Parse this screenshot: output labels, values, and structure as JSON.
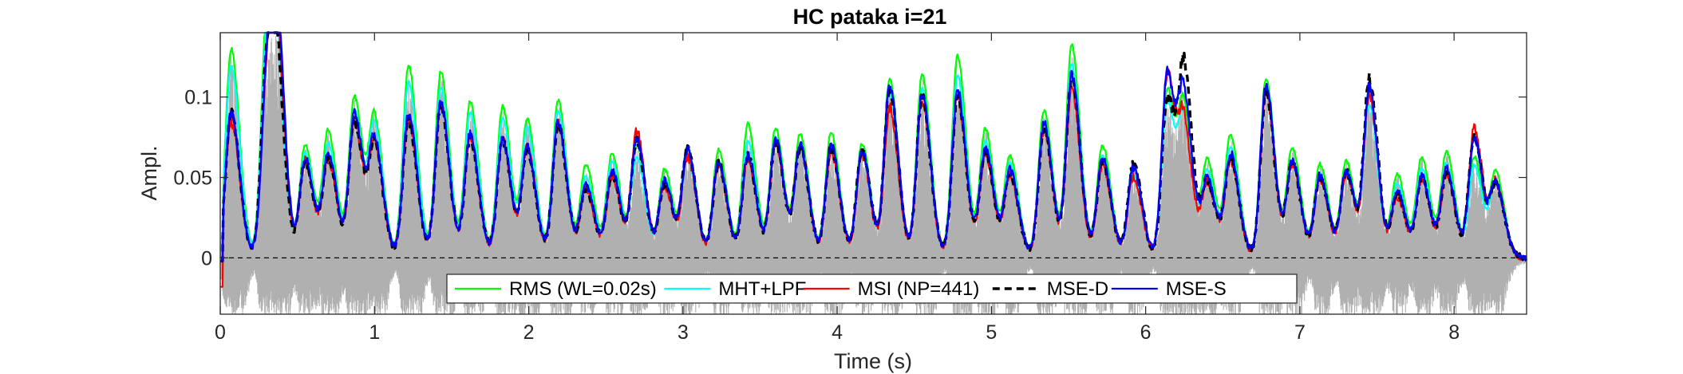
{
  "chart_data": {
    "type": "line",
    "title": "HC pataka i=21",
    "xlabel": "Time (s)",
    "ylabel": "Ampl.",
    "xlim": [
      0,
      8.47
    ],
    "ylim": [
      -0.035,
      0.14
    ],
    "xticks": [
      0,
      1,
      2,
      3,
      4,
      5,
      6,
      7,
      8
    ],
    "xtick_labels": [
      "0",
      "1",
      "2",
      "3",
      "4",
      "5",
      "6",
      "7",
      "8"
    ],
    "yticks": [
      0,
      0.05,
      0.1
    ],
    "ytick_labels": [
      "0",
      "0.05",
      "0.1"
    ],
    "grid": false,
    "legend_position": "bottom-inside-horizontal",
    "zero_line": {
      "y": 0,
      "style": "dashed",
      "color": "#000000"
    },
    "background_signal": {
      "description_color": "#b0b0b0",
      "amplitude_max": 0.14,
      "amplitude_min": -0.035
    },
    "peaks": {
      "t": [
        0.07,
        0.3,
        0.36,
        0.55,
        0.7,
        0.87,
        1.0,
        1.22,
        1.43,
        1.62,
        1.83,
        1.99,
        2.19,
        2.37,
        2.54,
        2.7,
        2.88,
        3.03,
        3.23,
        3.42,
        3.6,
        3.76,
        3.96,
        4.16,
        4.34,
        4.55,
        4.78,
        4.96,
        5.12,
        5.34,
        5.52,
        5.72,
        5.92,
        6.14,
        6.25,
        6.4,
        6.55,
        6.78,
        6.95,
        7.13,
        7.3,
        7.45,
        7.63,
        7.79,
        7.95,
        8.13,
        8.27
      ],
      "rms": [
        0.13,
        0.137,
        0.11,
        0.07,
        0.078,
        0.1,
        0.085,
        0.12,
        0.116,
        0.097,
        0.094,
        0.085,
        0.098,
        0.058,
        0.065,
        0.069,
        0.055,
        0.068,
        0.067,
        0.083,
        0.08,
        0.076,
        0.078,
        0.071,
        0.111,
        0.114,
        0.126,
        0.08,
        0.063,
        0.092,
        0.132,
        0.07,
        0.058,
        0.105,
        0.085,
        0.06,
        0.075,
        0.112,
        0.068,
        0.058,
        0.06,
        0.103,
        0.052,
        0.062,
        0.065,
        0.063,
        0.052
      ],
      "mht": [
        0.12,
        0.125,
        0.1,
        0.065,
        0.07,
        0.092,
        0.08,
        0.11,
        0.106,
        0.09,
        0.087,
        0.08,
        0.092,
        0.05,
        0.06,
        0.062,
        0.05,
        0.062,
        0.06,
        0.072,
        0.075,
        0.068,
        0.07,
        0.065,
        0.102,
        0.105,
        0.113,
        0.072,
        0.058,
        0.085,
        0.12,
        0.063,
        0.052,
        0.097,
        0.078,
        0.053,
        0.068,
        0.105,
        0.06,
        0.052,
        0.054,
        0.094,
        0.046,
        0.055,
        0.058,
        0.057,
        0.046
      ],
      "msi": [
        0.085,
        0.1,
        0.12,
        0.06,
        0.06,
        0.085,
        0.07,
        0.087,
        0.095,
        0.075,
        0.073,
        0.067,
        0.083,
        0.042,
        0.05,
        0.078,
        0.045,
        0.062,
        0.058,
        0.062,
        0.072,
        0.07,
        0.066,
        0.063,
        0.093,
        0.098,
        0.1,
        0.064,
        0.051,
        0.079,
        0.105,
        0.058,
        0.05,
        0.115,
        0.075,
        0.046,
        0.06,
        0.102,
        0.058,
        0.048,
        0.052,
        0.1,
        0.038,
        0.048,
        0.052,
        0.08,
        0.045
      ],
      "mse_d": [
        0.09,
        0.11,
        0.1,
        0.06,
        0.062,
        0.085,
        0.068,
        0.085,
        0.095,
        0.074,
        0.072,
        0.066,
        0.083,
        0.043,
        0.052,
        0.072,
        0.046,
        0.068,
        0.058,
        0.063,
        0.072,
        0.068,
        0.068,
        0.068,
        0.105,
        0.1,
        0.1,
        0.066,
        0.052,
        0.08,
        0.112,
        0.06,
        0.058,
        0.1,
        0.11,
        0.046,
        0.062,
        0.102,
        0.058,
        0.05,
        0.053,
        0.11,
        0.04,
        0.048,
        0.052,
        0.075,
        0.044
      ],
      "mse_s": [
        0.09,
        0.1,
        0.14,
        0.062,
        0.065,
        0.09,
        0.072,
        0.09,
        0.097,
        0.077,
        0.074,
        0.068,
        0.085,
        0.045,
        0.054,
        0.074,
        0.048,
        0.066,
        0.06,
        0.065,
        0.074,
        0.069,
        0.07,
        0.066,
        0.107,
        0.102,
        0.104,
        0.068,
        0.054,
        0.084,
        0.114,
        0.062,
        0.056,
        0.115,
        0.092,
        0.048,
        0.064,
        0.108,
        0.06,
        0.051,
        0.054,
        0.105,
        0.041,
        0.05,
        0.055,
        0.074,
        0.045
      ]
    },
    "series": [
      {
        "name": "RMS (WL=0.02s)",
        "key": "rms",
        "color": "#00ff00",
        "dash": "solid"
      },
      {
        "name": "MHT+LPF",
        "key": "mht",
        "color": "#00ffff",
        "dash": "solid"
      },
      {
        "name": "MSI (NP=441)",
        "key": "msi",
        "color": "#ff0000",
        "dash": "solid"
      },
      {
        "name": "MSE-D",
        "key": "mse_d",
        "color": "#000000",
        "dash": "dashed"
      },
      {
        "name": "MSE-S",
        "key": "mse_s",
        "color": "#0000ff",
        "dash": "solid"
      }
    ]
  }
}
